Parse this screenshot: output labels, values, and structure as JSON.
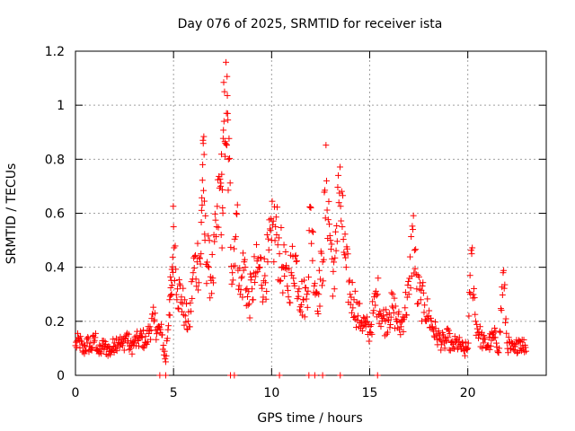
{
  "chart_data": {
    "type": "scatter",
    "title": "Day 076 of 2025, SRMTID for receiver ista",
    "xlabel": "GPS time / hours",
    "ylabel": "SRMTID / TECUs",
    "xlim": [
      0,
      24
    ],
    "ylim": [
      0,
      1.2
    ],
    "xticks": [
      0,
      5,
      10,
      15,
      20
    ],
    "xtick_labels": [
      "0",
      "5",
      "10",
      "15",
      "20"
    ],
    "yticks": [
      0,
      0.2,
      0.4,
      0.6,
      0.8,
      1.0,
      1.2
    ],
    "ytick_labels": [
      "0",
      "0.2",
      "0.4",
      "0.6",
      "0.8",
      "1",
      "1.2"
    ],
    "grid": true,
    "marker": "+",
    "color": "#ff0000",
    "series": [
      {
        "name": "SRMTID",
        "x": [
          0.0,
          0.2,
          0.4,
          0.6,
          0.8,
          1.0,
          1.2,
          1.4,
          1.6,
          1.8,
          2.0,
          2.2,
          2.4,
          2.6,
          2.8,
          3.0,
          3.2,
          3.4,
          3.6,
          3.8,
          4.0,
          4.2,
          4.4,
          4.6,
          4.8,
          4.9,
          5.0,
          5.2,
          5.4,
          5.6,
          5.8,
          6.0,
          6.2,
          6.4,
          6.5,
          6.6,
          6.8,
          7.0,
          7.2,
          7.4,
          7.5,
          7.6,
          7.7,
          7.8,
          8.0,
          8.2,
          8.4,
          8.6,
          8.8,
          9.0,
          9.2,
          9.4,
          9.6,
          9.8,
          10.0,
          10.2,
          10.4,
          10.6,
          10.8,
          11.0,
          11.2,
          11.4,
          11.6,
          11.8,
          12.0,
          12.2,
          12.4,
          12.6,
          12.8,
          13.0,
          13.2,
          13.4,
          13.6,
          13.8,
          14.0,
          14.2,
          14.4,
          14.6,
          14.8,
          15.0,
          15.2,
          15.4,
          15.6,
          15.8,
          16.0,
          16.2,
          16.4,
          16.6,
          16.8,
          17.0,
          17.2,
          17.4,
          17.6,
          17.8,
          18.0,
          18.2,
          18.4,
          18.6,
          18.8,
          19.0,
          19.2,
          19.4,
          19.6,
          19.8,
          20.0,
          20.2,
          20.4,
          20.6,
          20.8,
          21.0,
          21.2,
          21.4,
          21.6,
          21.8,
          22.0,
          22.2,
          22.4,
          22.6,
          22.8
        ],
        "y": [
          0.11,
          0.13,
          0.09,
          0.12,
          0.1,
          0.14,
          0.08,
          0.11,
          0.1,
          0.09,
          0.12,
          0.13,
          0.11,
          0.15,
          0.1,
          0.12,
          0.13,
          0.14,
          0.12,
          0.18,
          0.2,
          0.17,
          0.15,
          0.05,
          0.28,
          0.3,
          0.55,
          0.32,
          0.29,
          0.22,
          0.18,
          0.38,
          0.42,
          0.45,
          0.87,
          0.5,
          0.4,
          0.36,
          0.55,
          0.7,
          0.62,
          1.05,
          0.97,
          0.8,
          0.38,
          0.6,
          0.3,
          0.42,
          0.26,
          0.32,
          0.38,
          0.4,
          0.35,
          0.42,
          0.5,
          0.55,
          0.45,
          0.4,
          0.33,
          0.38,
          0.44,
          0.32,
          0.28,
          0.3,
          0.62,
          0.34,
          0.3,
          0.42,
          0.72,
          0.5,
          0.32,
          0.74,
          0.55,
          0.4,
          0.3,
          0.28,
          0.22,
          0.2,
          0.18,
          0.16,
          0.24,
          0.3,
          0.22,
          0.2,
          0.23,
          0.25,
          0.2,
          0.18,
          0.25,
          0.3,
          0.54,
          0.32,
          0.28,
          0.26,
          0.22,
          0.18,
          0.15,
          0.13,
          0.12,
          0.14,
          0.1,
          0.12,
          0.11,
          0.09,
          0.1,
          0.45,
          0.2,
          0.15,
          0.12,
          0.11,
          0.13,
          0.14,
          0.1,
          0.38,
          0.12,
          0.1,
          0.09,
          0.13,
          0.11
        ],
        "zero_points_x": [
          4.3,
          4.6,
          7.9,
          8.1,
          10.4,
          11.9,
          12.2,
          12.6,
          13.5,
          15.4
        ]
      }
    ]
  }
}
